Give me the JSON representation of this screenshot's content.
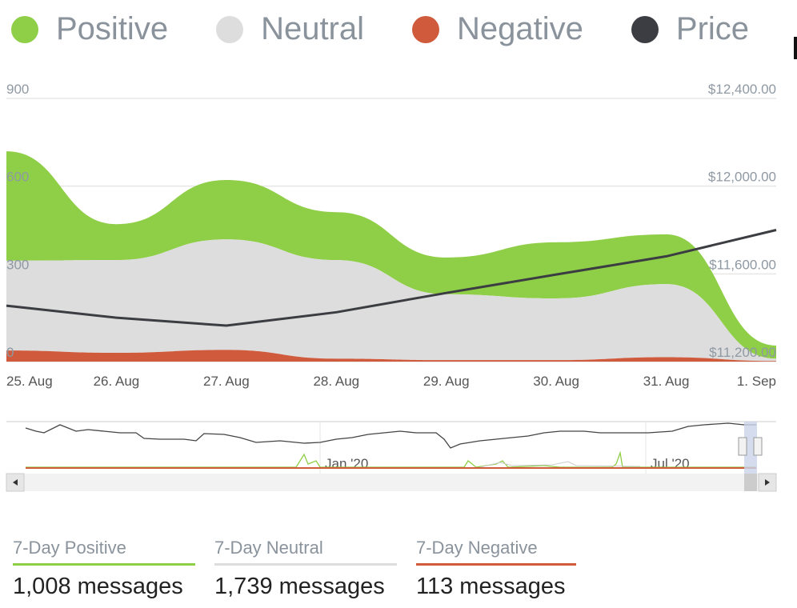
{
  "legend": [
    {
      "label": "Positive",
      "color": "#8fce47"
    },
    {
      "label": "Neutral",
      "color": "#dddddd"
    },
    {
      "label": "Negative",
      "color": "#cf5a3c"
    },
    {
      "label": "Price",
      "color": "#3b3d42"
    }
  ],
  "chart_data": {
    "type": "area",
    "categories": [
      "25. Aug",
      "26. Aug",
      "27. Aug",
      "28. Aug",
      "29. Aug",
      "30. Aug",
      "31. Aug",
      "1. Sep"
    ],
    "stacked": true,
    "series": [
      {
        "name": "Negative",
        "values": [
          38,
          30,
          40,
          10,
          5,
          5,
          15,
          2
        ],
        "color": "#cf5a3c"
      },
      {
        "name": "Neutral",
        "values": [
          307,
          317,
          378,
          337,
          225,
          211,
          250,
          8
        ],
        "color": "#dddddd"
      },
      {
        "name": "Positive",
        "values": [
          374,
          123,
          203,
          164,
          126,
          192,
          170,
          45
        ],
        "color": "#8fce47"
      },
      {
        "name": "Price",
        "type": "line",
        "axis": "right",
        "values": [
          11455,
          11400,
          11364,
          11425,
          11513,
          11597,
          11680,
          11800
        ],
        "color": "#3b3d42"
      }
    ],
    "y_left": {
      "ticks": [
        "0",
        "300",
        "600",
        "900"
      ],
      "range": [
        0,
        900
      ]
    },
    "y_right": {
      "ticks": [
        "$11,200.00",
        "$11,600.00",
        "$12,000.00",
        "$12,400.00"
      ],
      "range": [
        11200,
        12400
      ]
    },
    "navigator_labels": [
      "Jan '20",
      "Jul '20"
    ]
  },
  "stats": [
    {
      "title": "7-Day Positive",
      "value": "1,008 messages",
      "color": "#8fce47"
    },
    {
      "title": "7-Day Neutral",
      "value": "1,739 messages",
      "color": "#dddddd"
    },
    {
      "title": "7-Day Negative",
      "value": "113 messages",
      "color": "#cf5a3c"
    }
  ]
}
